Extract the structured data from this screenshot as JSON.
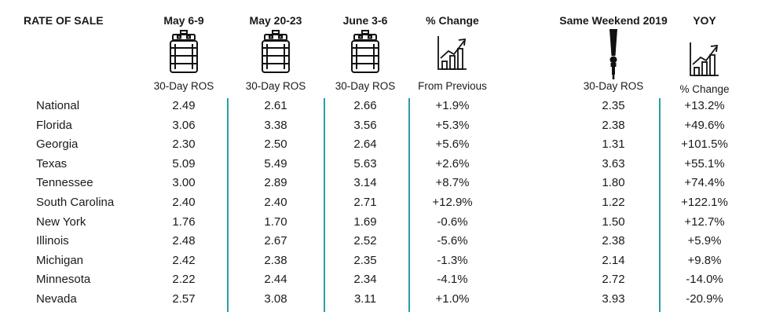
{
  "chart_data": {
    "type": "table",
    "title": "RATE OF SALE",
    "columns": [
      {
        "key": "may69",
        "header": "May 6-9",
        "subheader": "30-Day ROS",
        "icon": "keg-icon"
      },
      {
        "key": "may2023",
        "header": "May 20-23",
        "subheader": "30-Day ROS",
        "icon": "keg-icon"
      },
      {
        "key": "jun36",
        "header": "June 3-6",
        "subheader": "30-Day ROS",
        "icon": "keg-icon"
      },
      {
        "key": "chg",
        "header": "% Change",
        "subheader": "From Previous",
        "icon": "growth-chart-icon"
      },
      {
        "key": "sw2019",
        "header": "Same Weekend 2019",
        "subheader": "30-Day ROS",
        "icon": "beer-tap-icon"
      },
      {
        "key": "yoy",
        "header": "YOY",
        "subheader": "% Change",
        "icon": "growth-chart-icon"
      }
    ],
    "rows": [
      {
        "state": "National",
        "values": [
          "2.49",
          "2.61",
          "2.66",
          "+1.9%",
          "2.35",
          "+13.2%"
        ]
      },
      {
        "state": "Florida",
        "values": [
          "3.06",
          "3.38",
          "3.56",
          "+5.3%",
          "2.38",
          "+49.6%"
        ]
      },
      {
        "state": "Georgia",
        "values": [
          "2.30",
          "2.50",
          "2.64",
          "+5.6%",
          "1.31",
          "+101.5%"
        ]
      },
      {
        "state": "Texas",
        "values": [
          "5.09",
          "5.49",
          "5.63",
          "+2.6%",
          "3.63",
          "+55.1%"
        ]
      },
      {
        "state": "Tennessee",
        "values": [
          "3.00",
          "2.89",
          "3.14",
          "+8.7%",
          "1.80",
          "+74.4%"
        ]
      },
      {
        "state": "South Carolina",
        "values": [
          "2.40",
          "2.40",
          "2.71",
          "+12.9%",
          "1.22",
          "+122.1%"
        ]
      },
      {
        "state": "New York",
        "values": [
          "1.76",
          "1.70",
          "1.69",
          "-0.6%",
          "1.50",
          "+12.7%"
        ]
      },
      {
        "state": "Illinois",
        "values": [
          "2.48",
          "2.67",
          "2.52",
          "-5.6%",
          "2.38",
          "+5.9%"
        ]
      },
      {
        "state": "Michigan",
        "values": [
          "2.42",
          "2.38",
          "2.35",
          "-1.3%",
          "2.14",
          "+9.8%"
        ]
      },
      {
        "state": "Minnesota",
        "values": [
          "2.22",
          "2.44",
          "2.34",
          "-4.1%",
          "2.72",
          "-14.0%"
        ]
      },
      {
        "state": "Nevada",
        "values": [
          "2.57",
          "3.08",
          "3.11",
          "+1.0%",
          "3.93",
          "-20.9%"
        ]
      }
    ],
    "colors": {
      "divider": "#2a9da6",
      "text": "#1a1a1a"
    }
  }
}
